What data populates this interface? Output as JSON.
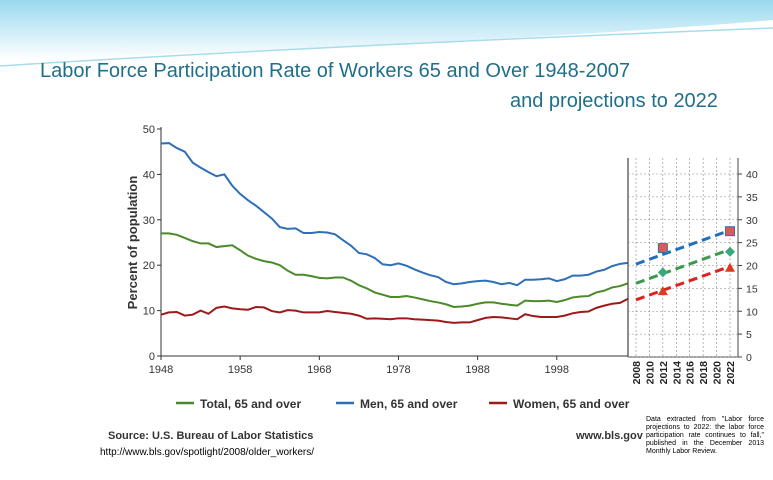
{
  "title_line1": "Labor Force Participation Rate of Workers 65 and Over  1948-2007",
  "title_line2": "and projections to 2022",
  "source": "Source: U.S. Bureau of Labor Statistics",
  "website": "www.bls.gov",
  "url": "http://www.bls.gov/spotlight/2008/older_workers/",
  "note": "Data extracted from \"Labor force projections to 2022: the labor force participation rate continues to fall,\" published in the December 2013 Monthly Labor Review.",
  "colors": {
    "total": "#4a8a2a",
    "men": "#2f6fb8",
    "women": "#9b1a1a",
    "proj_total": "#3a9a4a",
    "proj_men": "#1f6fc0",
    "proj_women": "#e02020",
    "title": "#1f6f8b"
  },
  "chart_data": {
    "type": "line",
    "ylabel": "Percent of population",
    "ylim": [
      0,
      50
    ],
    "y_ticks": [
      "0",
      "10",
      "20",
      "30",
      "40",
      "50"
    ],
    "x_ticks": [
      "1948",
      "1958",
      "1968",
      "1978",
      "1988",
      "1998"
    ],
    "x_range": [
      1948,
      2007
    ],
    "x": [
      1948,
      1949,
      1950,
      1951,
      1952,
      1953,
      1954,
      1955,
      1956,
      1957,
      1958,
      1959,
      1960,
      1961,
      1962,
      1963,
      1964,
      1965,
      1966,
      1967,
      1968,
      1969,
      1970,
      1971,
      1972,
      1973,
      1974,
      1975,
      1976,
      1977,
      1978,
      1979,
      1980,
      1981,
      1982,
      1983,
      1984,
      1985,
      1986,
      1987,
      1988,
      1989,
      1990,
      1991,
      1992,
      1993,
      1994,
      1995,
      1996,
      1997,
      1998,
      1999,
      2000,
      2001,
      2002,
      2003,
      2004,
      2005,
      2006,
      2007
    ],
    "series": [
      {
        "name": "Total, 65 and over",
        "key": "total",
        "values": [
          27.0,
          27.0,
          26.7,
          26.0,
          25.3,
          24.8,
          24.8,
          24.0,
          24.2,
          24.4,
          23.3,
          22.1,
          21.4,
          20.9,
          20.6,
          20.0,
          18.8,
          17.9,
          17.9,
          17.6,
          17.2,
          17.1,
          17.3,
          17.3,
          16.6,
          15.6,
          14.9,
          14.0,
          13.5,
          13.0,
          13.0,
          13.2,
          12.9,
          12.5,
          12.1,
          11.8,
          11.4,
          10.8,
          10.9,
          11.1,
          11.5,
          11.8,
          11.8,
          11.5,
          11.3,
          11.1,
          12.2,
          12.1,
          12.1,
          12.2,
          11.9,
          12.3,
          12.9,
          13.1,
          13.2,
          14.0,
          14.4,
          15.1,
          15.4,
          16.0
        ]
      },
      {
        "name": "Men, 65 and over",
        "key": "men",
        "values": [
          46.8,
          46.9,
          45.8,
          45.0,
          42.6,
          41.5,
          40.5,
          39.6,
          40.0,
          37.5,
          35.7,
          34.3,
          33.1,
          31.7,
          30.3,
          28.4,
          28.0,
          28.1,
          27.1,
          27.1,
          27.3,
          27.2,
          26.8,
          25.5,
          24.3,
          22.7,
          22.4,
          21.6,
          20.2,
          20.0,
          20.4,
          19.9,
          19.1,
          18.4,
          17.8,
          17.4,
          16.3,
          15.8,
          16.0,
          16.3,
          16.5,
          16.6,
          16.3,
          15.8,
          16.1,
          15.6,
          16.8,
          16.8,
          16.9,
          17.1,
          16.5,
          16.9,
          17.7,
          17.7,
          17.9,
          18.6,
          19.0,
          19.8,
          20.3,
          20.5
        ]
      },
      {
        "name": "Women, 65 and over",
        "key": "women",
        "values": [
          9.1,
          9.6,
          9.7,
          8.9,
          9.1,
          10.0,
          9.3,
          10.6,
          10.9,
          10.5,
          10.3,
          10.2,
          10.8,
          10.7,
          9.9,
          9.6,
          10.1,
          10.0,
          9.6,
          9.6,
          9.6,
          9.9,
          9.7,
          9.5,
          9.3,
          8.9,
          8.2,
          8.3,
          8.2,
          8.1,
          8.3,
          8.3,
          8.1,
          8.0,
          7.9,
          7.8,
          7.5,
          7.3,
          7.4,
          7.4,
          7.9,
          8.4,
          8.6,
          8.5,
          8.3,
          8.1,
          9.2,
          8.8,
          8.6,
          8.6,
          8.6,
          8.9,
          9.4,
          9.7,
          9.8,
          10.6,
          11.1,
          11.5,
          11.7,
          12.6
        ]
      }
    ],
    "projection": {
      "x_ticks": [
        "2008",
        "2010",
        "2012",
        "2014",
        "2016",
        "2018",
        "2020",
        "2022"
      ],
      "y_ticks": [
        "0",
        "5",
        "10",
        "15",
        "20",
        "25",
        "30",
        "35",
        "40"
      ],
      "ylim": [
        0,
        40
      ],
      "series": [
        {
          "key": "proj_men",
          "x": [
            2008,
            2022
          ],
          "values": [
            20.3,
            27.7
          ],
          "markers": [
            {
              "x": 2012,
              "y": 23.8
            },
            {
              "x": 2022,
              "y": 27.5
            }
          ]
        },
        {
          "key": "proj_total",
          "x": [
            2008,
            2022
          ],
          "values": [
            16.1,
            23.5
          ],
          "markers": [
            {
              "x": 2012,
              "y": 18.5
            },
            {
              "x": 2022,
              "y": 23.0
            }
          ]
        },
        {
          "key": "proj_women",
          "x": [
            2008,
            2022
          ],
          "values": [
            12.5,
            19.8
          ],
          "markers": [
            {
              "x": 2012,
              "y": 14.4
            },
            {
              "x": 2022,
              "y": 19.5
            }
          ]
        }
      ]
    }
  }
}
